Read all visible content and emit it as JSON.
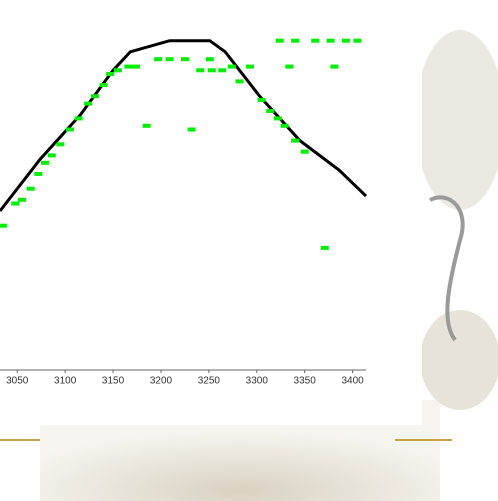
{
  "chart_data": {
    "type": "scatter",
    "xlim": [
      3032,
      3414
    ],
    "ylim": [
      0,
      1
    ],
    "xticks": [
      3050,
      3100,
      3150,
      3200,
      3250,
      3300,
      3350,
      3400
    ],
    "line": {
      "color": "#000000",
      "x": [
        3032,
        3074,
        3116,
        3150,
        3168,
        3209,
        3251,
        3267,
        3303,
        3345,
        3386,
        3414
      ],
      "values": [
        0.43,
        0.57,
        0.69,
        0.81,
        0.86,
        0.89,
        0.89,
        0.86,
        0.74,
        0.62,
        0.54,
        0.47
      ]
    },
    "points": {
      "color": "#00ee00",
      "x": [
        3035,
        3048,
        3055,
        3064,
        3072,
        3079,
        3086,
        3095,
        3105,
        3114,
        3124,
        3131,
        3140,
        3147,
        3155,
        3166,
        3174,
        3185,
        3197,
        3209,
        3225,
        3232,
        3241,
        3251,
        3253,
        3264,
        3274,
        3282,
        3293,
        3305,
        3314,
        3322,
        3329,
        3340,
        3350,
        3324,
        3334,
        3340,
        3361,
        3377,
        3381,
        3393,
        3405,
        3371
      ],
      "values": [
        0.39,
        0.45,
        0.46,
        0.49,
        0.53,
        0.56,
        0.58,
        0.61,
        0.65,
        0.68,
        0.72,
        0.74,
        0.77,
        0.8,
        0.81,
        0.82,
        0.82,
        0.66,
        0.84,
        0.84,
        0.84,
        0.65,
        0.81,
        0.84,
        0.81,
        0.81,
        0.82,
        0.78,
        0.82,
        0.73,
        0.7,
        0.68,
        0.66,
        0.62,
        0.59,
        0.89,
        0.82,
        0.89,
        0.89,
        0.89,
        0.82,
        0.89,
        0.89,
        0.33
      ]
    }
  }
}
